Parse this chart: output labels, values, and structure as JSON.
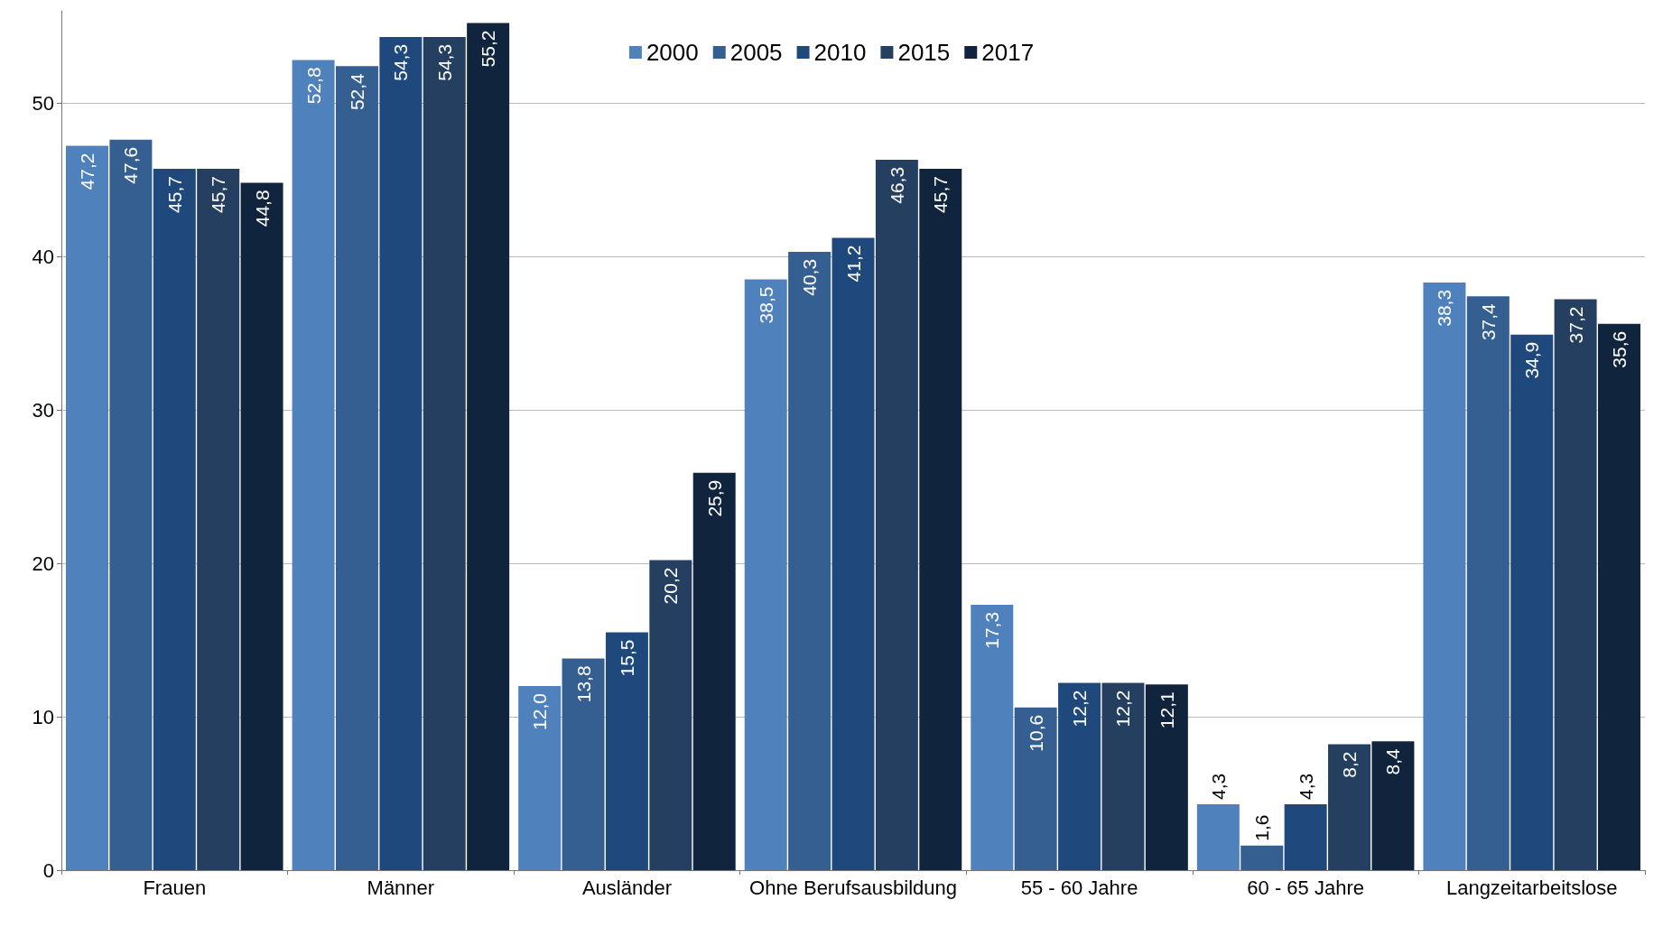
{
  "chart_data": {
    "type": "bar",
    "categories": [
      "Frauen",
      "Männer",
      "Ausländer",
      "Ohne Berufsausbildung",
      "55 - 60 Jahre",
      "60 - 65 Jahre",
      "Langzeitarbeitslose"
    ],
    "series": [
      {
        "name": "2000",
        "color": "#4f81bd",
        "values": [
          47.2,
          52.8,
          12.0,
          38.5,
          17.3,
          4.3,
          38.3
        ],
        "value_labels": [
          "47,2",
          "52,8",
          "12,0",
          "38,5",
          "17,3",
          "4,3",
          "38,3"
        ]
      },
      {
        "name": "2005",
        "color": "#365f91",
        "values": [
          47.6,
          52.4,
          13.8,
          40.3,
          10.6,
          1.6,
          37.4
        ],
        "value_labels": [
          "47,6",
          "52,4",
          "13,8",
          "40,3",
          "10,6",
          "1,6",
          "37,4"
        ]
      },
      {
        "name": "2010",
        "color": "#1f497d",
        "values": [
          45.7,
          54.3,
          15.5,
          41.2,
          12.2,
          4.3,
          34.9
        ],
        "value_labels": [
          "45,7",
          "54,3",
          "15,5",
          "41,2",
          "12,2",
          "4,3",
          "34,9"
        ]
      },
      {
        "name": "2015",
        "color": "#243f60",
        "values": [
          45.7,
          54.3,
          20.2,
          46.3,
          12.2,
          8.2,
          37.2
        ],
        "value_labels": [
          "45,7",
          "54,3",
          "20,2",
          "46,3",
          "12,2",
          "8,2",
          "37,2"
        ]
      },
      {
        "name": "2017",
        "color": "#10243e",
        "values": [
          44.8,
          55.2,
          25.9,
          45.7,
          12.1,
          8.4,
          35.6
        ],
        "value_labels": [
          "44,8",
          "55,2",
          "25,9",
          "45,7",
          "12,1",
          "8,4",
          "35,6"
        ]
      }
    ],
    "ylim": [
      0,
      56
    ],
    "yticks": [
      0,
      10,
      20,
      30,
      40,
      50
    ],
    "grid": "y",
    "legend": "top"
  }
}
